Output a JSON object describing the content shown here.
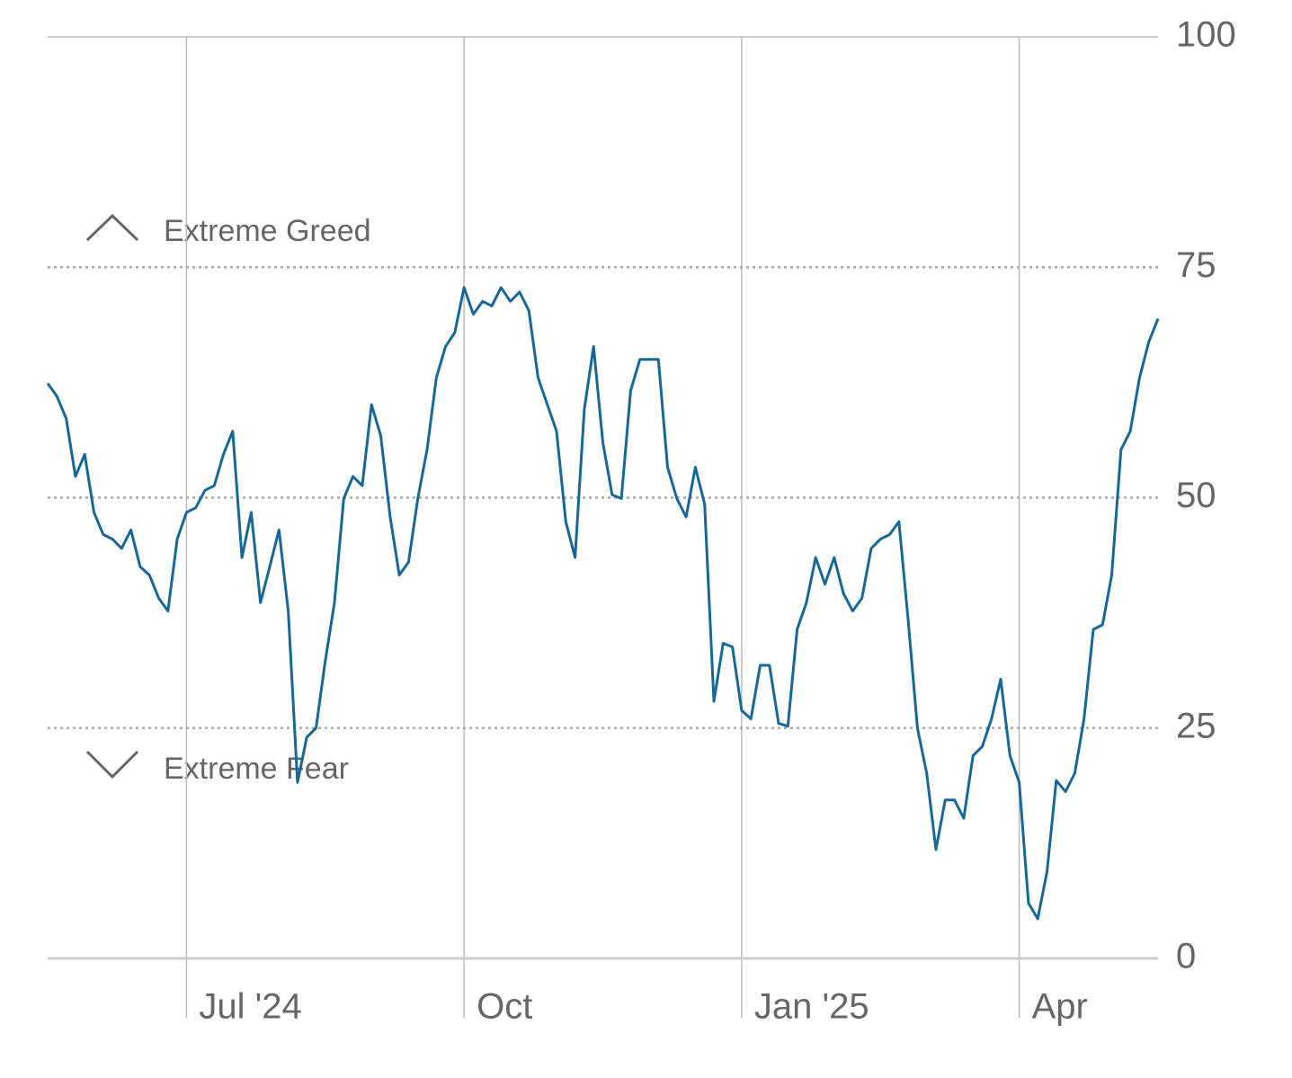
{
  "chart_data": {
    "type": "line",
    "annotations": [
      "Extreme Greed",
      "Extreme Fear"
    ],
    "categories": [
      null,
      null,
      null,
      null,
      null,
      null,
      null,
      null,
      null,
      null,
      null,
      null,
      null,
      null,
      null,
      "Jul '24",
      null,
      null,
      null,
      null,
      null,
      null,
      null,
      null,
      null,
      null,
      null,
      null,
      null,
      null,
      null,
      null,
      null,
      null,
      null,
      null,
      null,
      null,
      null,
      null,
      null,
      null,
      null,
      null,
      null,
      "Oct",
      null,
      null,
      null,
      null,
      null,
      null,
      null,
      null,
      null,
      null,
      null,
      null,
      null,
      null,
      null,
      null,
      null,
      null,
      null,
      null,
      null,
      null,
      null,
      null,
      null,
      null,
      null,
      null,
      null,
      "Jan '25",
      null,
      null,
      null,
      null,
      null,
      null,
      null,
      null,
      null,
      null,
      null,
      null,
      null,
      null,
      null,
      null,
      null,
      null,
      null,
      null,
      null,
      null,
      null,
      null,
      null,
      null,
      null,
      null,
      null,
      "Apr",
      null,
      null,
      null,
      null,
      null,
      null,
      null,
      null,
      null,
      null,
      null,
      null,
      null,
      null,
      null
    ],
    "series": [
      {
        "color": "#14689a",
        "values": [
          62.4,
          61,
          58.6,
          52.3,
          54.7,
          48.4,
          46,
          45.5,
          44.5,
          46.5,
          42.5,
          41.6,
          39.1,
          37.7,
          45.5,
          48.4,
          48.9,
          50.8,
          51.3,
          54.7,
          57.2,
          43.5,
          48.4,
          38.6,
          42.5,
          46.5,
          37.7,
          19.1,
          24,
          25,
          32.3,
          38.6,
          49.9,
          52.3,
          51.3,
          60.1,
          56.7,
          48,
          41.6,
          43,
          49.9,
          55.2,
          63,
          66.4,
          67.9,
          72.8,
          69.9,
          71.3,
          70.8,
          72.8,
          71.3,
          72.3,
          70.3,
          63,
          60.1,
          57.2,
          47.4,
          43.5,
          59.6,
          66.4,
          56,
          50.3,
          49.9,
          61.6,
          65,
          65,
          65,
          53.3,
          49.9,
          47.9,
          53.3,
          49.3,
          27.9,
          34.2,
          33.8,
          26.9,
          26,
          31.8,
          31.8,
          25.5,
          25.2,
          35.7,
          38.6,
          43.5,
          40.6,
          43.5,
          39.6,
          37.7,
          39.1,
          44.5,
          45.5,
          46,
          47.4,
          36.7,
          25,
          20.1,
          11.8,
          17.2,
          17.2,
          15.2,
          22,
          23,
          26,
          30.3,
          22,
          19.1,
          6,
          4.3,
          9.4,
          19.3,
          18.1,
          20.1,
          26,
          35.7,
          36.2,
          41.6,
          55.2,
          57.2,
          63,
          66.9,
          69.4
        ]
      }
    ],
    "ylim": [
      0,
      100
    ],
    "yticks": [
      0,
      25,
      50,
      75,
      100
    ],
    "grid": true
  }
}
